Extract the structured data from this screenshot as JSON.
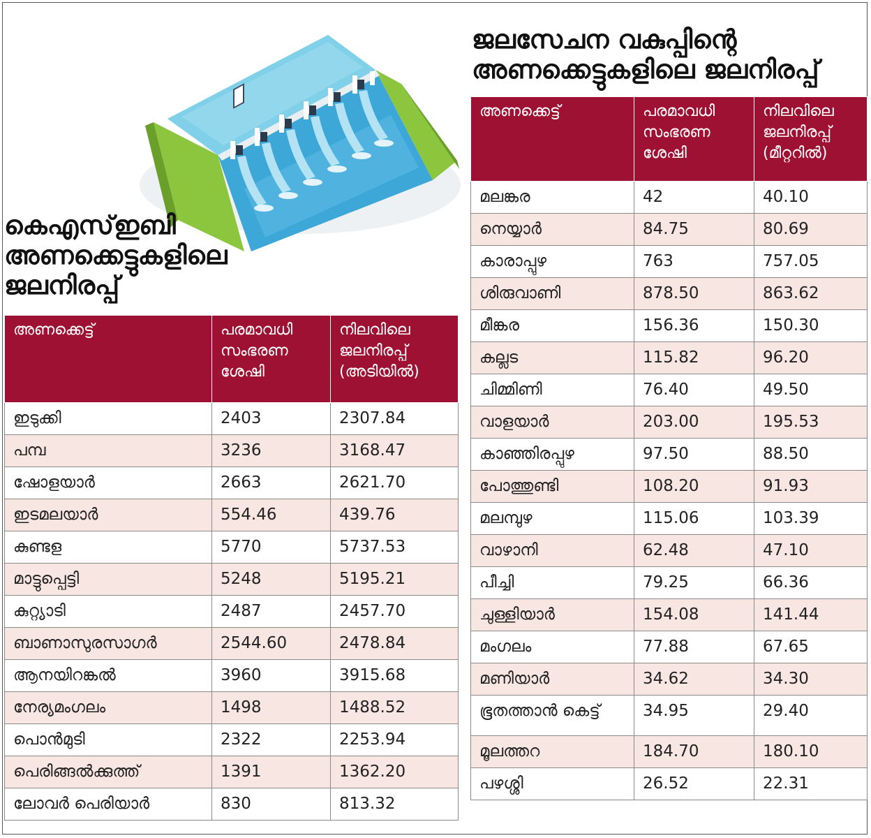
{
  "left": {
    "title_lines": [
      "കെഎസ്ഇബി",
      "അണക്കെട്ടുകളിലെ",
      "ജലനിരപ്പ്"
    ],
    "headers": [
      [
        "അണക്കെട്ട്"
      ],
      [
        "പരമാവധി",
        "സംഭരണ",
        "ശേഷി"
      ],
      [
        "നിലവിലെ",
        "ജലനിരപ്പ്",
        "(അടിയിൽ)"
      ]
    ],
    "rows": [
      [
        "ഇടുക്കി",
        "2403",
        "2307.84"
      ],
      [
        "പമ്പ",
        " 3236",
        "3168.47"
      ],
      [
        "ഷോളയാർ",
        "2663",
        "2621.70"
      ],
      [
        "ഇടമലയാർ",
        " 554.46",
        "439.76"
      ],
      [
        "കുണ്ടള",
        "5770",
        "5737.53"
      ],
      [
        "മാട്ടുപ്പെട്ടി",
        "5248",
        "5195.21"
      ],
      [
        "കുറ്റ്യാടി",
        "2487",
        "2457.70"
      ],
      [
        "ബാണാസുരസാഗർ",
        "2544.60",
        "2478.84"
      ],
      [
        "ആനയിറങ്കൽ",
        "3960",
        "3915.68"
      ],
      [
        "നേര്യമംഗലം",
        "1498",
        "1488.52"
      ],
      [
        "പൊൻമുടി",
        "2322",
        "2253.94"
      ],
      [
        "പെരിങ്ങൽക്കുത്ത്",
        "1391",
        "1362.20"
      ],
      [
        "ലോവർ പെരിയാർ",
        "830",
        "813.32"
      ]
    ]
  },
  "right": {
    "title_lines": [
      "ജലസേചന വകുപ്പിന്റെ",
      "അണക്കെട്ടുകളിലെ ജലനിരപ്പ്"
    ],
    "headers": [
      [
        "അണക്കെട്ട്"
      ],
      [
        "പരമാവധി",
        "സംഭരണ",
        "ശേഷി"
      ],
      [
        "നിലവിലെ",
        "ജലനിരപ്പ്",
        "(മീറ്ററിൽ)"
      ]
    ],
    "rows": [
      [
        "മലങ്കര",
        "42",
        "40.10"
      ],
      [
        "നെയ്യാർ",
        "84.75",
        "80.69"
      ],
      [
        "കാരാപ്പുഴ",
        "763",
        "757.05"
      ],
      [
        "ശിരുവാണി",
        "878.50",
        "863.62"
      ],
      [
        "മീങ്കര",
        "156.36",
        "150.30"
      ],
      [
        "കല്ലട",
        "115.82",
        "96.20"
      ],
      [
        "ചിമ്മിണി",
        "76.40",
        "49.50"
      ],
      [
        "വാളയാർ",
        "203.00",
        "195.53"
      ],
      [
        "കാഞ്ഞിരപ്പുഴ",
        "97.50",
        "88.50"
      ],
      [
        "പോത്തുണ്ടി",
        "108.20",
        "91.93"
      ],
      [
        "മലമ്പുഴ",
        "115.06",
        "103.39"
      ],
      [
        "വാഴാനി",
        "62.48",
        "47.10"
      ],
      [
        "പീച്ചി",
        "79.25",
        "66.36"
      ],
      [
        "ചുള്ളിയാർ",
        "154.08",
        "141.44"
      ],
      [
        "മംഗലം",
        "77.88",
        "67.65"
      ],
      [
        "മണിയാർ",
        "34.62",
        "34.30"
      ],
      [
        "ഭൂതത്താൻ കെട്ട്",
        "34.95",
        "29.40"
      ],
      [
        "മൂലത്തറ",
        "184.70",
        "180.10"
      ],
      [
        "പഴശ്ശി",
        "26.52",
        "22.31"
      ]
    ]
  },
  "colors": {
    "header_bg": "#9e1132",
    "alt_row": "#f8e6e3",
    "border": "#8a8a8a"
  },
  "illustration": "dam-icon"
}
